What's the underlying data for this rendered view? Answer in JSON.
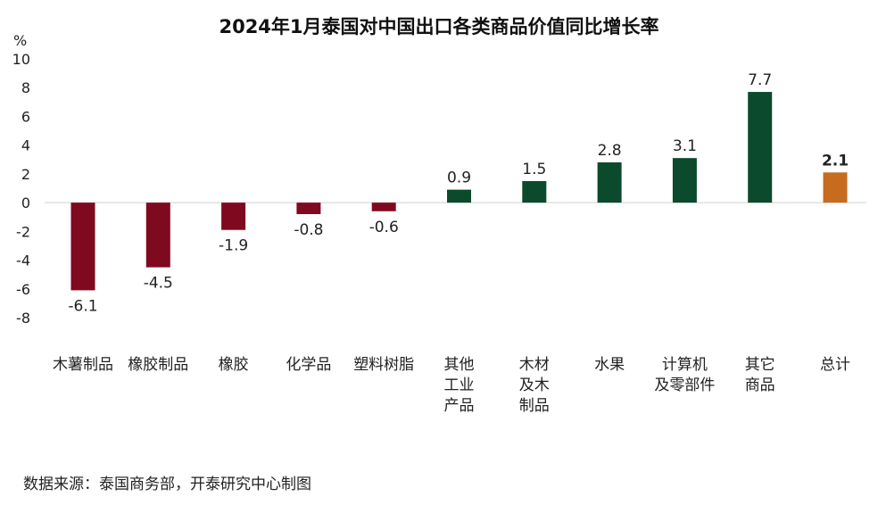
{
  "chart_data": {
    "type": "bar",
    "title": "2024年1月泰国对中国出口各类商品价值同比增长率",
    "y_unit": "%",
    "categories": [
      [
        "木薯制品"
      ],
      [
        "橡胶制品"
      ],
      [
        "橡胶"
      ],
      [
        "化学品"
      ],
      [
        "塑料树脂"
      ],
      [
        "其他",
        "工业",
        "产品"
      ],
      [
        "木材",
        "及木",
        "制品"
      ],
      [
        "水果"
      ],
      [
        "计算机",
        "及零部件"
      ],
      [
        "其它",
        "商品"
      ],
      [
        "总计"
      ]
    ],
    "values": [
      -6.1,
      -4.5,
      -1.9,
      -0.8,
      -0.6,
      0.9,
      1.5,
      2.8,
      3.1,
      7.7,
      2.1
    ],
    "value_labels": [
      "-6.1",
      "-4.5",
      "-1.9",
      "-0.8",
      "-0.6",
      "0.9",
      "1.5",
      "2.8",
      "3.1",
      "7.7",
      "2.1"
    ],
    "ylim": [
      -8,
      10
    ],
    "yticks": [
      -8,
      -6,
      -4,
      -2,
      0,
      2,
      4,
      6,
      8,
      10
    ],
    "colors": {
      "negative": "#7f0a1f",
      "positive": "#0b4a2c",
      "total": "#c76b1e"
    },
    "total_label_bold": true,
    "grid": false
  },
  "footer": {
    "source": "数据来源：泰国商务部，开泰研究中心制图"
  }
}
